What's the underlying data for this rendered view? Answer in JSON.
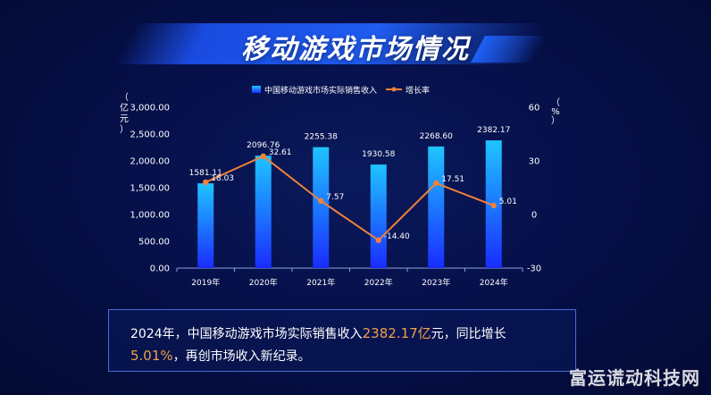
{
  "title": "移动游戏市场情况",
  "chart_data": {
    "type": "bar",
    "categories": [
      "2019年",
      "2020年",
      "2021年",
      "2022年",
      "2023年",
      "2024年"
    ],
    "series": [
      {
        "name": "中国移动游戏市场实际销售收入",
        "values": [
          1581.11,
          2096.76,
          2255.38,
          1930.58,
          2268.6,
          2382.17
        ],
        "labels": [
          "1581.11",
          "2096.76",
          "2255.38",
          "1930.58",
          "2268.60",
          "2382.17"
        ],
        "axis": "left"
      },
      {
        "name": "增长率",
        "type": "line",
        "values": [
          18.03,
          32.61,
          7.57,
          -14.4,
          17.51,
          5.01
        ],
        "labels": [
          "18.03",
          "32.61",
          "7.57",
          "-14.40",
          "17.51",
          "5.01"
        ],
        "axis": "right"
      }
    ],
    "ylabel_left": "（亿元）",
    "ylabel_right": "（%）",
    "ylim_left": [
      0,
      3000
    ],
    "ylim_right": [
      -30,
      60
    ],
    "yticks_left": [
      "0.00",
      "500.00",
      "1,000.00",
      "1,500.00",
      "2,000.00",
      "2,500.00",
      "3,000.00"
    ],
    "yticks_right": [
      "-30",
      "0",
      "30",
      "60"
    ],
    "legend_position": "top-center",
    "colors": {
      "bar_top": "#1fc4ff",
      "bar_bottom": "#1a2cff",
      "line": "#f0813a"
    }
  },
  "summary": {
    "part1": "2024年，中国移动游戏市场实际销售收入",
    "value1": "2382.17亿",
    "part2": "元，同比增长",
    "value2": "5.01%",
    "part3": "，再创市场收入新纪录。"
  },
  "watermark": "富运谎动科技网"
}
